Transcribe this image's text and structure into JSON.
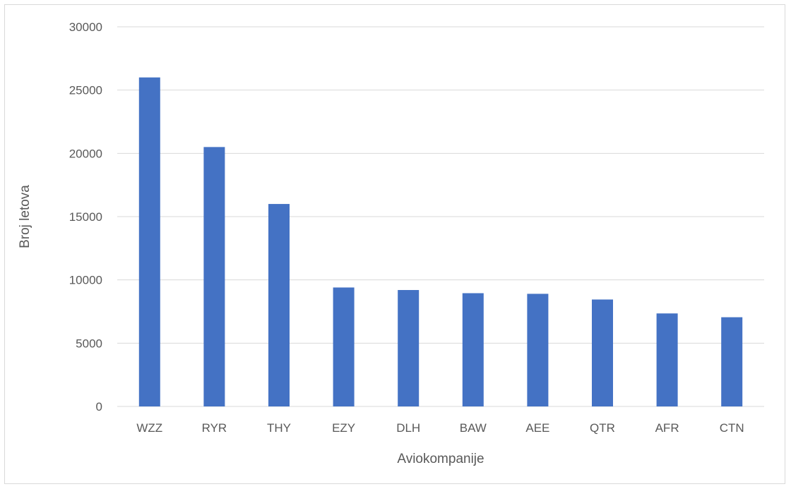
{
  "chart_data": {
    "type": "bar",
    "title": "",
    "xlabel": "Aviokompanije",
    "ylabel": "Broj letova",
    "categories": [
      "WZZ",
      "RYR",
      "THY",
      "EZY",
      "DLH",
      "BAW",
      "AEE",
      "QTR",
      "AFR",
      "CTN"
    ],
    "values": [
      26000,
      20500,
      16000,
      9400,
      9200,
      8950,
      8900,
      8450,
      7350,
      7050
    ],
    "ylim": [
      0,
      30000
    ],
    "yticks": [
      0,
      5000,
      10000,
      15000,
      20000,
      25000,
      30000
    ],
    "ytick_labels": [
      "0",
      "5000",
      "10000",
      "15000",
      "20000",
      "25000",
      "30000"
    ],
    "grid": true,
    "legend": "none",
    "bar_color": "#4472c4"
  }
}
